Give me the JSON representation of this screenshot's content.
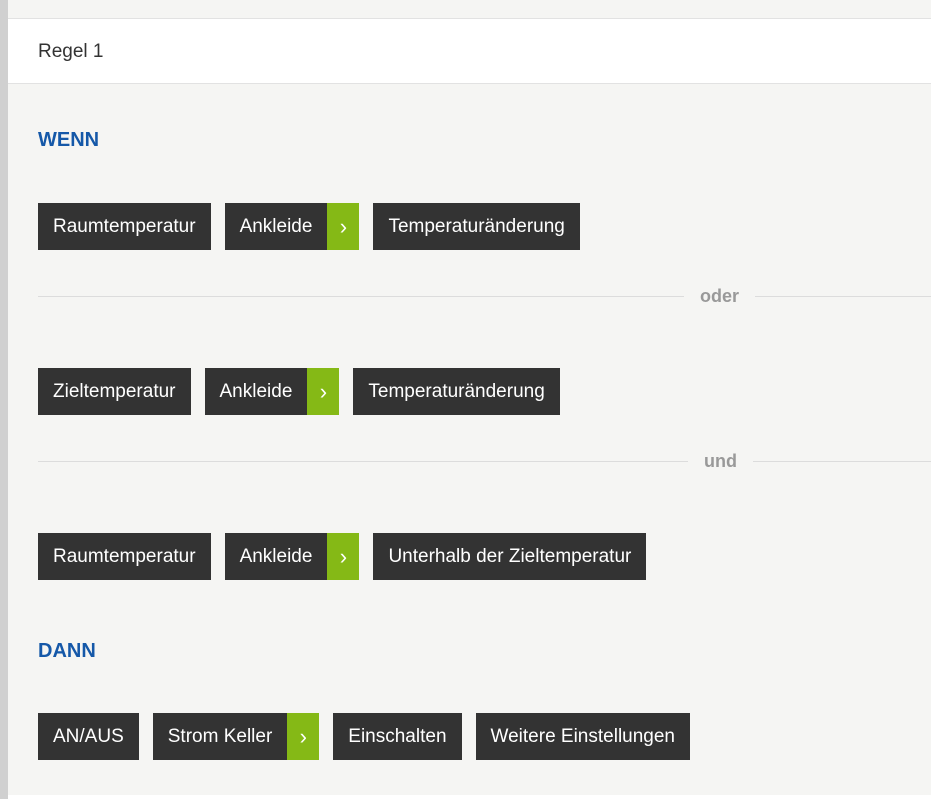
{
  "header": {
    "title": "Regel 1"
  },
  "wenn_label": "WENN",
  "dann_label": "DANN",
  "rows": [
    {
      "chips": [
        {
          "label": "Raumtemperatur"
        },
        {
          "label": "Ankleide",
          "arrow": "chevron-right"
        },
        {
          "label": "Temperaturänderung"
        }
      ]
    },
    {
      "chips": [
        {
          "label": "Zieltemperatur"
        },
        {
          "label": "Ankleide",
          "arrow": "chevron-right"
        },
        {
          "label": "Temperaturänderung"
        }
      ]
    },
    {
      "chips": [
        {
          "label": "Raumtemperatur"
        },
        {
          "label": "Ankleide",
          "arrow": "chevron-right"
        },
        {
          "label": "Unterhalb der Zieltemperatur"
        }
      ]
    },
    {
      "chips": [
        {
          "label": "AN/AUS"
        },
        {
          "label": "Strom Keller",
          "arrow": "chevron-right"
        },
        {
          "label": "Einschalten"
        },
        {
          "label": "Weitere Einstellungen"
        }
      ]
    }
  ],
  "connectors": [
    "oder",
    "und"
  ],
  "colors": {
    "accent_blue": "#1558a8",
    "arrow_green": "#85b916",
    "chip_bg": "#333333"
  }
}
